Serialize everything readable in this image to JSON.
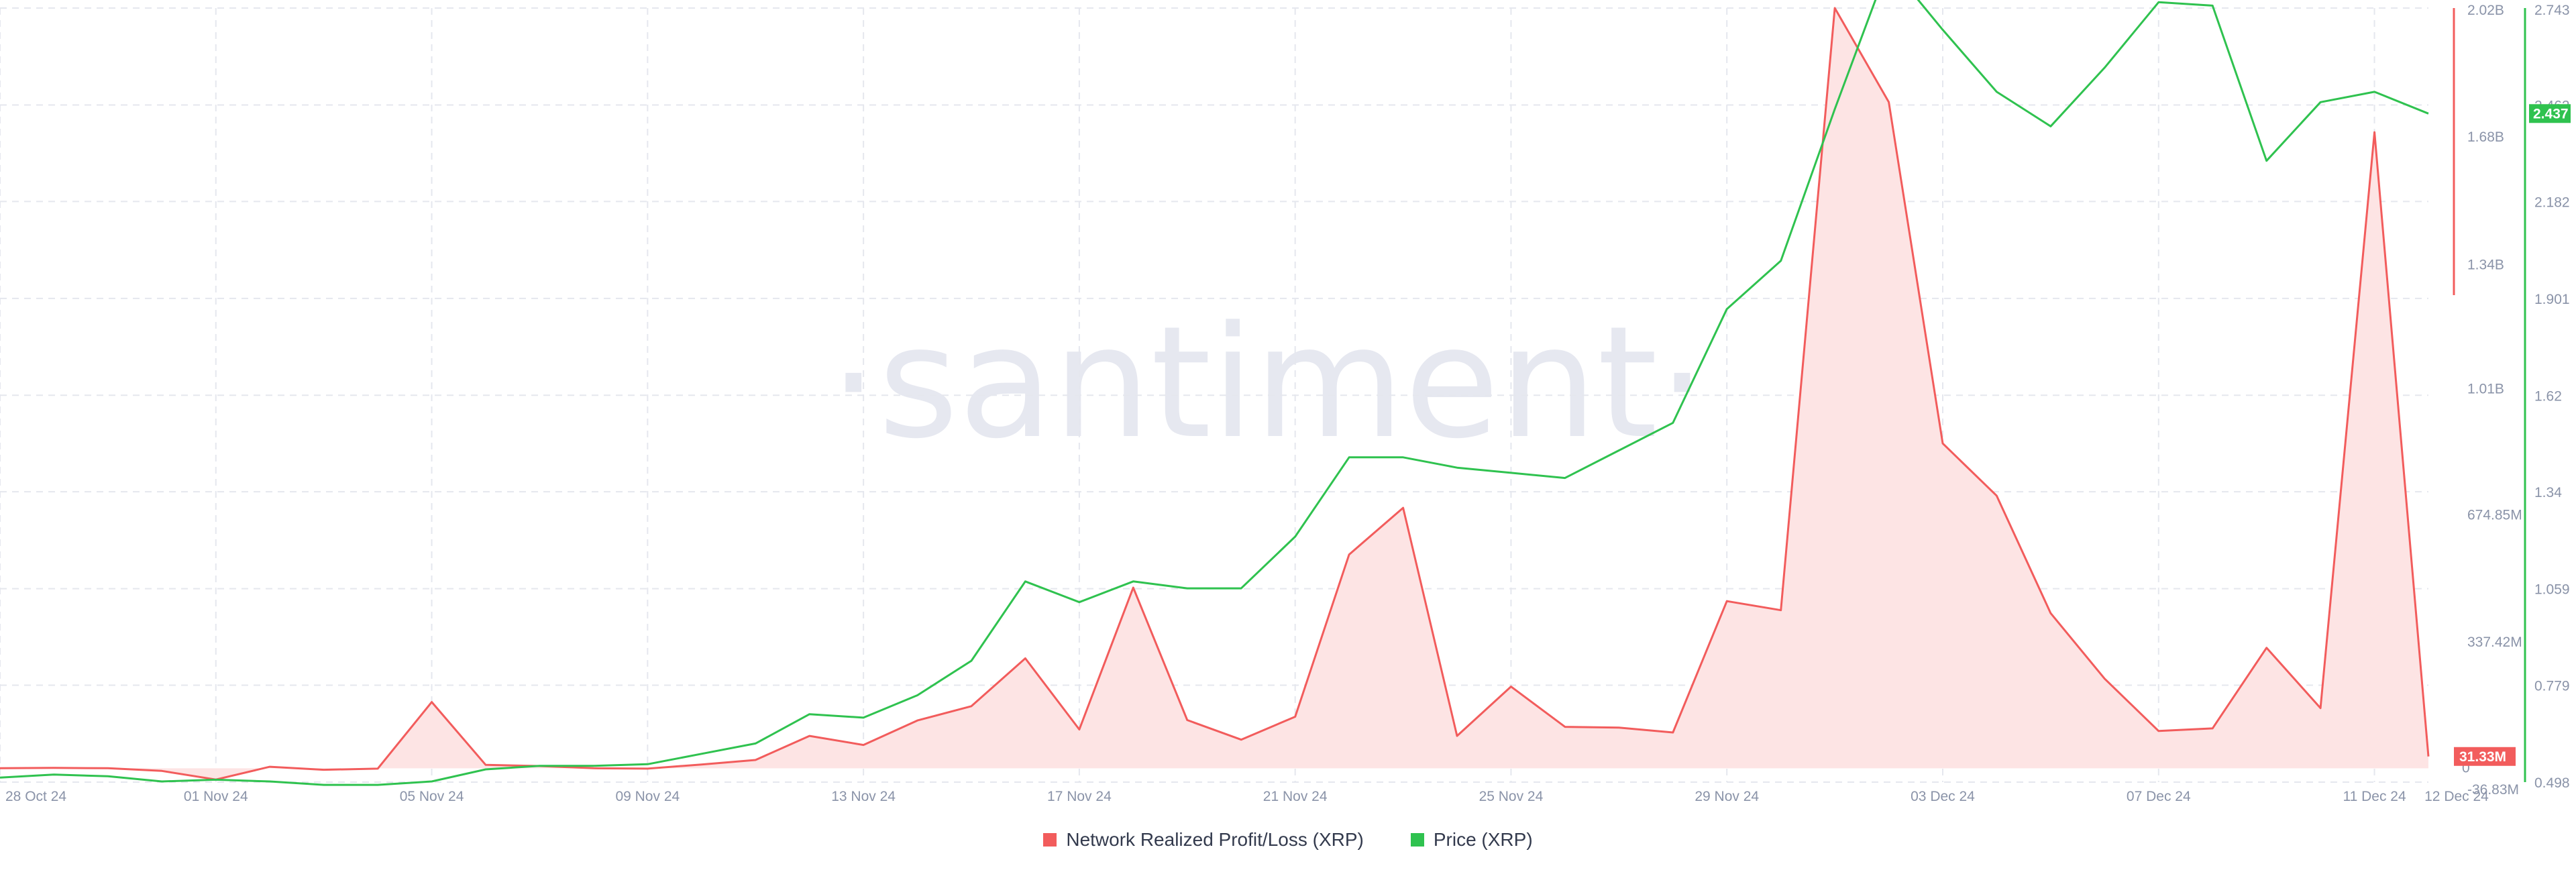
{
  "watermark": "·santiment·",
  "legend": [
    {
      "label": "Network Realized Profit/Loss (XRP)",
      "color": "#f25c5c"
    },
    {
      "label": "Price (XRP)",
      "color": "#2fc24f"
    }
  ],
  "colors": {
    "nrpl": "#f25c5c",
    "nrpl_fill": "#fde4e4",
    "price": "#2fc24f",
    "grid": "#e5e7ee",
    "axis_text": "#8a93a8"
  },
  "chart_data": {
    "type": "line",
    "x_ticks": [
      "28 Oct 24",
      "01 Nov 24",
      "05 Nov 24",
      "09 Nov 24",
      "13 Nov 24",
      "17 Nov 24",
      "21 Nov 24",
      "25 Nov 24",
      "29 Nov 24",
      "03 Dec 24",
      "07 Dec 24",
      "11 Dec 24",
      "12 Dec 24"
    ],
    "x": [
      "2024-10-28",
      "2024-10-29",
      "2024-10-30",
      "2024-10-31",
      "2024-11-01",
      "2024-11-02",
      "2024-11-03",
      "2024-11-04",
      "2024-11-05",
      "2024-11-06",
      "2024-11-07",
      "2024-11-08",
      "2024-11-09",
      "2024-11-10",
      "2024-11-11",
      "2024-11-12",
      "2024-11-13",
      "2024-11-14",
      "2024-11-15",
      "2024-11-16",
      "2024-11-17",
      "2024-11-18",
      "2024-11-19",
      "2024-11-20",
      "2024-11-21",
      "2024-11-22",
      "2024-11-23",
      "2024-11-24",
      "2024-11-25",
      "2024-11-26",
      "2024-11-27",
      "2024-11-28",
      "2024-11-29",
      "2024-11-30",
      "2024-12-01",
      "2024-12-02",
      "2024-12-03",
      "2024-12-04",
      "2024-12-05",
      "2024-12-06",
      "2024-12-07",
      "2024-12-08",
      "2024-12-09",
      "2024-12-10",
      "2024-12-11",
      "2024-12-12"
    ],
    "series": [
      {
        "name": "Network Realized Profit/Loss (XRP)",
        "axis": "left",
        "unit": "XRP",
        "values": [
          0,
          1,
          0,
          -7,
          -30,
          4,
          -4,
          -1,
          176,
          9,
          6,
          0,
          -1,
          10,
          22,
          86,
          62,
          127,
          165,
          292,
          103,
          480,
          128,
          76,
          137,
          568,
          692,
          86,
          217,
          110,
          108,
          95,
          444,
          420,
          2020,
          1770,
          863,
          724,
          412,
          238,
          99,
          106,
          320,
          160,
          1690,
          31.33
        ]
      },
      {
        "name": "Price (XRP)",
        "axis": "right",
        "values": [
          0.511,
          0.52,
          0.515,
          0.5,
          0.505,
          0.5,
          0.49,
          0.49,
          0.5,
          0.535,
          0.545,
          0.545,
          0.55,
          0.58,
          0.61,
          0.695,
          0.685,
          0.75,
          0.85,
          1.08,
          1.02,
          1.08,
          1.06,
          1.06,
          1.21,
          1.44,
          1.44,
          1.41,
          1.395,
          1.38,
          1.46,
          1.54,
          1.87,
          2.01,
          2.45,
          2.87,
          2.68,
          2.5,
          2.4,
          2.57,
          2.76,
          2.75,
          2.3,
          2.47,
          2.5,
          2.437
        ]
      }
    ],
    "left_axis": {
      "labels": [
        "-36.83M",
        "0",
        "337.42M",
        "674.85M",
        "1.01B",
        "1.34B",
        "1.68B",
        "2.02B"
      ],
      "values": [
        -36.83,
        0,
        337.42,
        674.85,
        1010,
        1340,
        1680,
        2020
      ],
      "unit_note": "values in millions",
      "range": [
        -36.83,
        2020
      ]
    },
    "right_axis": {
      "labels": [
        "0.498",
        "0.779",
        "1.059",
        "1.34",
        "1.62",
        "1.901",
        "2.182",
        "2.462",
        "2.743"
      ],
      "values": [
        0.498,
        0.779,
        1.059,
        1.34,
        1.62,
        1.901,
        2.182,
        2.462,
        2.743
      ],
      "range": [
        0.498,
        2.743
      ]
    },
    "last_value_tags": {
      "nrpl": "31.33M",
      "price": "2.437"
    },
    "grid": true,
    "legend_position": "bottom-center"
  }
}
